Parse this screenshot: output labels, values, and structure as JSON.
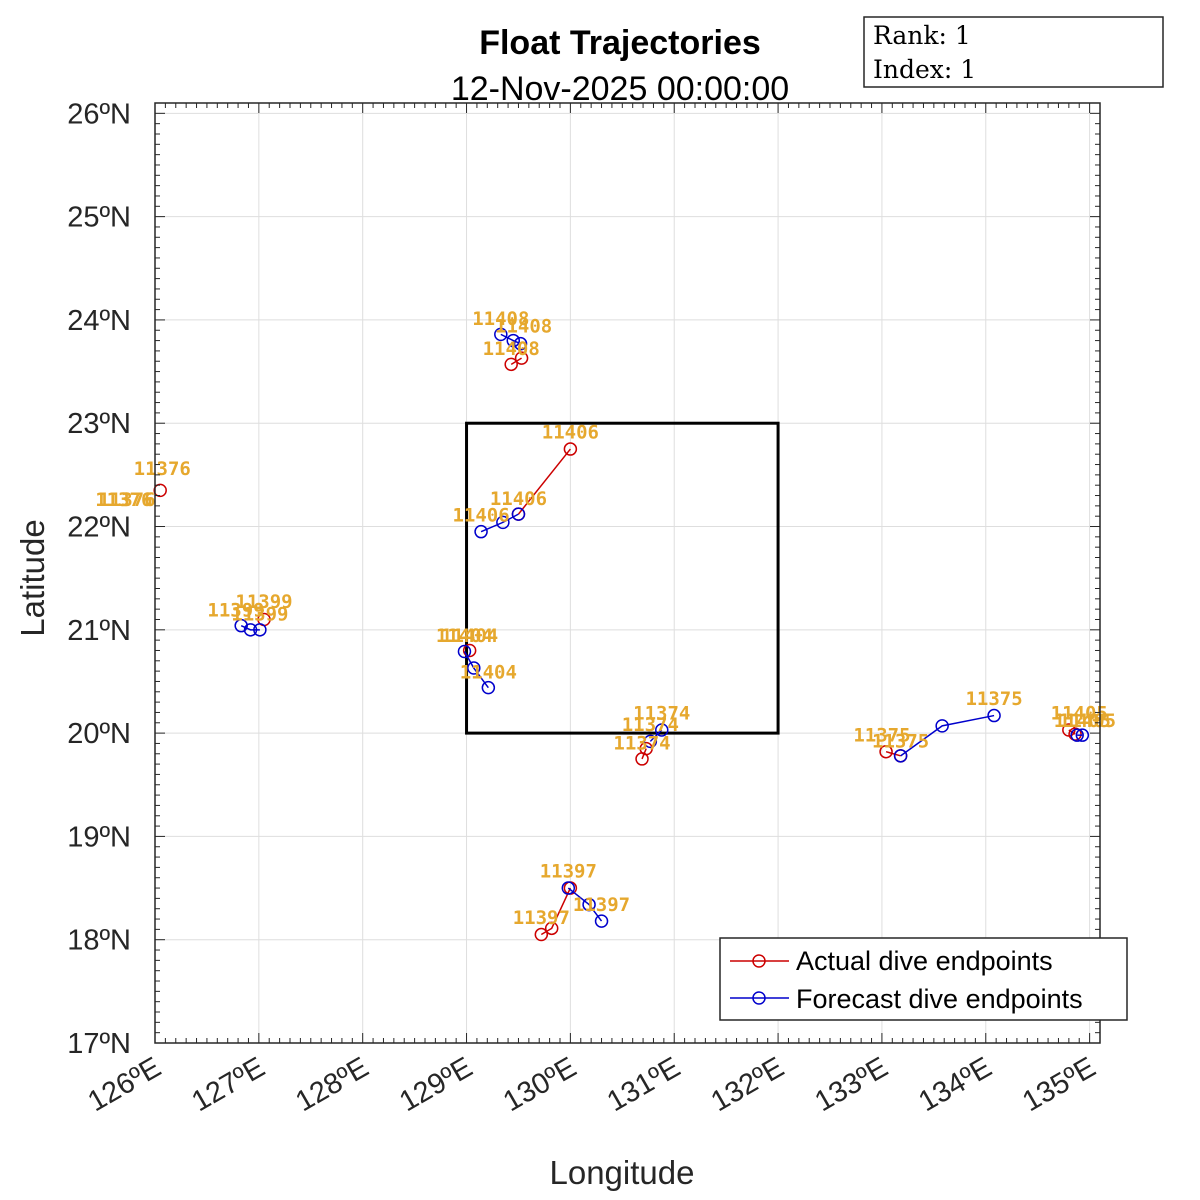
{
  "chart_data": {
    "type": "line",
    "title": "Float Trajectories",
    "subtitle": "12-Nov-2025 00:00:00",
    "xlabel": "Longitude",
    "ylabel": "Latitude",
    "xlim": [
      126,
      135.1
    ],
    "ylim": [
      17,
      26.1
    ],
    "x_ticks": [
      126,
      127,
      128,
      129,
      130,
      131,
      132,
      133,
      134,
      135
    ],
    "x_tick_labels": [
      "126ºE",
      "127ºE",
      "128ºE",
      "129ºE",
      "130ºE",
      "131ºE",
      "132ºE",
      "133ºE",
      "134ºE",
      "135ºE"
    ],
    "y_ticks": [
      17,
      18,
      19,
      20,
      21,
      22,
      23,
      24,
      25,
      26
    ],
    "y_tick_labels": [
      "17ºN",
      "18ºN",
      "19ºN",
      "20ºN",
      "21ºN",
      "22ºN",
      "23ºN",
      "24ºN",
      "25ºN",
      "26ºN"
    ],
    "grid": true,
    "info_box": [
      "Rank: 1",
      "Index: 1"
    ],
    "target_box": {
      "lon": [
        129,
        132
      ],
      "lat": [
        20,
        23
      ]
    },
    "legend": {
      "placement": "bottom-right",
      "entries": [
        {
          "label": "Actual dive endpoints",
          "color": "#cc0000"
        },
        {
          "label": "Forecast dive endpoints",
          "color": "#0000cc"
        }
      ]
    },
    "series": [
      {
        "name": "Actual dive endpoints",
        "float": "11408",
        "color": "#cc0000",
        "points": [
          [
            129.43,
            23.57
          ],
          [
            129.53,
            23.63
          ]
        ]
      },
      {
        "name": "Forecast dive endpoints",
        "float": "11408",
        "color": "#0000cc",
        "points": [
          [
            129.33,
            23.86
          ],
          [
            129.45,
            23.8
          ],
          [
            129.52,
            23.77
          ]
        ]
      },
      {
        "name": "Actual dive endpoints",
        "float": "11406",
        "color": "#cc0000",
        "points": [
          [
            129.5,
            22.12
          ],
          [
            130.0,
            22.75
          ]
        ]
      },
      {
        "name": "Forecast dive endpoints",
        "float": "11406",
        "color": "#0000cc",
        "points": [
          [
            129.14,
            21.95
          ],
          [
            129.35,
            22.04
          ],
          [
            129.5,
            22.12
          ]
        ]
      },
      {
        "name": "Actual dive endpoints",
        "float": "11376",
        "color": "#cc0000",
        "points": [
          [
            126.05,
            22.35
          ]
        ]
      },
      {
        "name": "Actual dive endpoints",
        "float": "11399",
        "color": "#cc0000",
        "points": [
          [
            127.05,
            21.1
          ]
        ]
      },
      {
        "name": "Forecast dive endpoints",
        "float": "11399",
        "color": "#0000cc",
        "points": [
          [
            126.83,
            21.04
          ],
          [
            126.92,
            21.0
          ],
          [
            127.01,
            21.0
          ]
        ]
      },
      {
        "name": "Actual dive endpoints",
        "float": "11404",
        "color": "#cc0000",
        "points": [
          [
            129.03,
            20.8
          ]
        ]
      },
      {
        "name": "Forecast dive endpoints",
        "float": "11404",
        "color": "#0000cc",
        "points": [
          [
            128.98,
            20.79
          ],
          [
            129.07,
            20.63
          ],
          [
            129.21,
            20.44
          ]
        ]
      },
      {
        "name": "Actual dive endpoints",
        "float": "11374",
        "color": "#cc0000",
        "points": [
          [
            130.69,
            19.75
          ],
          [
            130.73,
            19.85
          ]
        ]
      },
      {
        "name": "Forecast dive endpoints",
        "float": "11374",
        "color": "#0000cc",
        "points": [
          [
            130.77,
            19.92
          ],
          [
            130.88,
            20.03
          ]
        ]
      },
      {
        "name": "Actual dive endpoints",
        "float": "11375",
        "color": "#cc0000",
        "points": [
          [
            133.04,
            19.82
          ],
          [
            133.18,
            19.78
          ]
        ]
      },
      {
        "name": "Forecast dive endpoints",
        "float": "11375",
        "color": "#0000cc",
        "points": [
          [
            133.18,
            19.78
          ],
          [
            133.58,
            20.07
          ],
          [
            134.08,
            20.17
          ]
        ]
      },
      {
        "name": "Actual dive endpoints",
        "float": "11405",
        "color": "#cc0000",
        "points": [
          [
            134.8,
            20.03
          ],
          [
            134.86,
            19.99
          ]
        ]
      },
      {
        "name": "Forecast dive endpoints",
        "float": "11405",
        "color": "#0000cc",
        "points": [
          [
            134.88,
            19.98
          ],
          [
            134.93,
            19.98
          ]
        ]
      },
      {
        "name": "Actual dive endpoints",
        "float": "11397",
        "color": "#cc0000",
        "points": [
          [
            129.72,
            18.05
          ],
          [
            129.82,
            18.11
          ],
          [
            130.0,
            18.5
          ]
        ]
      },
      {
        "name": "Forecast dive endpoints",
        "float": "11397",
        "color": "#0000cc",
        "points": [
          [
            129.98,
            18.5
          ],
          [
            130.18,
            18.34
          ],
          [
            130.3,
            18.18
          ]
        ]
      }
    ],
    "labels": [
      {
        "text": "11408",
        "lon": 129.33,
        "lat": 23.95
      },
      {
        "text": "11408",
        "lon": 129.55,
        "lat": 23.88
      },
      {
        "text": "11408",
        "lon": 129.43,
        "lat": 23.66
      },
      {
        "text": "11406",
        "lon": 130.0,
        "lat": 22.85
      },
      {
        "text": "11406",
        "lon": 129.5,
        "lat": 22.21
      },
      {
        "text": "11406",
        "lon": 129.14,
        "lat": 22.05
      },
      {
        "text": "11376",
        "lon": 126.07,
        "lat": 22.5
      },
      {
        "text": "11376",
        "lon": 125.7,
        "lat": 22.2
      },
      {
        "text": "11376",
        "lon": 125.73,
        "lat": 22.2
      },
      {
        "text": "11399",
        "lon": 127.05,
        "lat": 21.21
      },
      {
        "text": "11399",
        "lon": 126.78,
        "lat": 21.13
      },
      {
        "text": "11399",
        "lon": 127.01,
        "lat": 21.09
      },
      {
        "text": "11404",
        "lon": 128.98,
        "lat": 20.88
      },
      {
        "text": "11404",
        "lon": 129.03,
        "lat": 20.88
      },
      {
        "text": "11404",
        "lon": 129.21,
        "lat": 20.53
      },
      {
        "text": "11374",
        "lon": 130.88,
        "lat": 20.13
      },
      {
        "text": "11374",
        "lon": 130.77,
        "lat": 20.02
      },
      {
        "text": "11374",
        "lon": 130.69,
        "lat": 19.84
      },
      {
        "text": "11375",
        "lon": 134.08,
        "lat": 20.27
      },
      {
        "text": "11375",
        "lon": 133.0,
        "lat": 19.92
      },
      {
        "text": "11375",
        "lon": 133.18,
        "lat": 19.86
      },
      {
        "text": "11405",
        "lon": 134.9,
        "lat": 20.13
      },
      {
        "text": "11405",
        "lon": 134.98,
        "lat": 20.06
      },
      {
        "text": "11405",
        "lon": 134.93,
        "lat": 20.06
      },
      {
        "text": "11397",
        "lon": 129.98,
        "lat": 18.6
      },
      {
        "text": "11397",
        "lon": 130.3,
        "lat": 18.28
      },
      {
        "text": "11397",
        "lon": 129.72,
        "lat": 18.15
      }
    ]
  }
}
